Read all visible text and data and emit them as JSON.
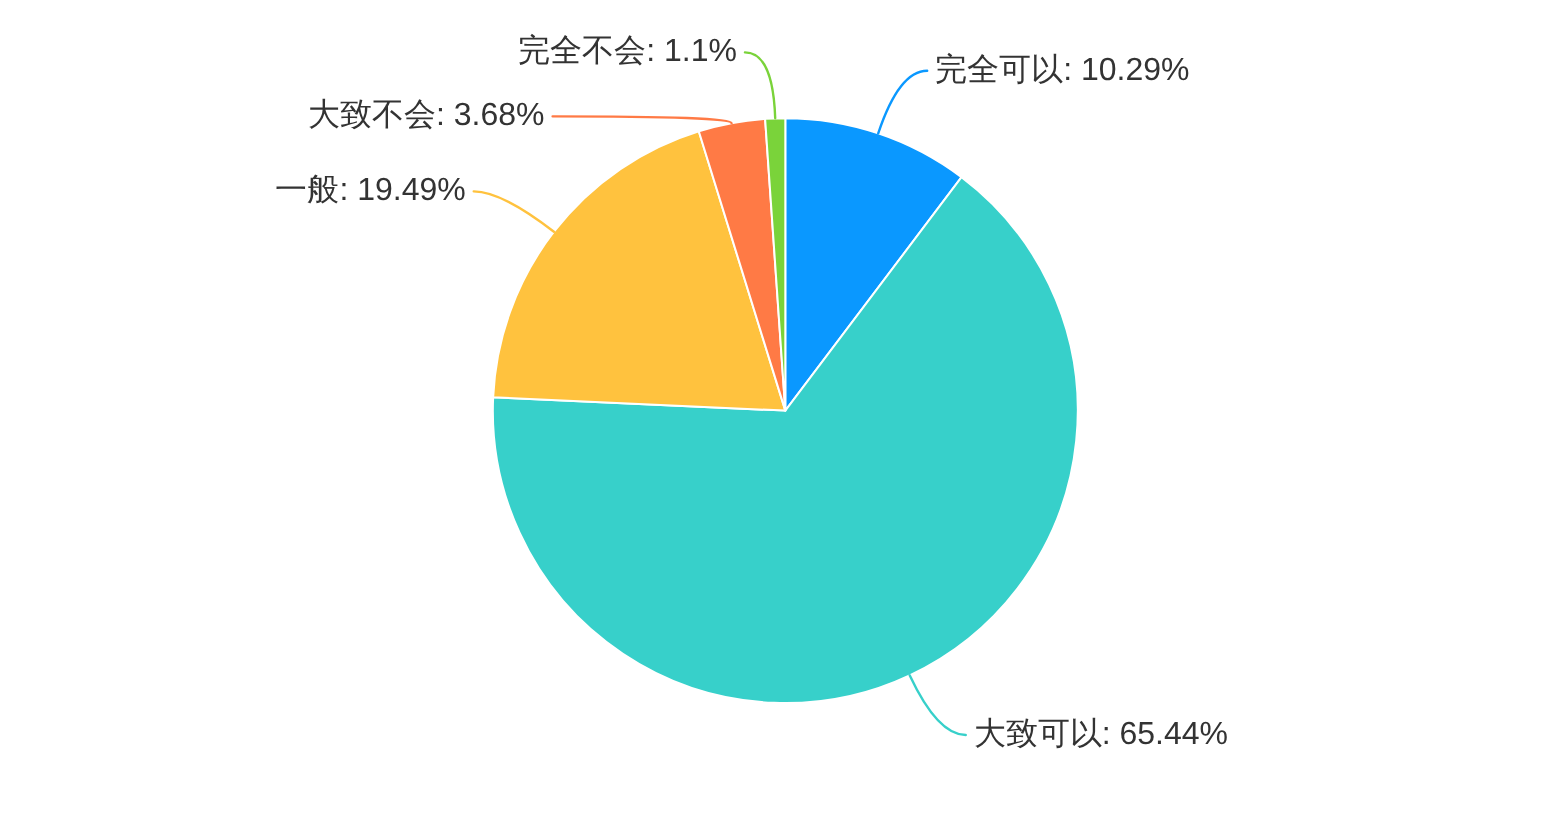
{
  "chart_data": {
    "type": "pie",
    "categories": [
      "完全可以",
      "大致可以",
      "一般",
      "大致不会",
      "完全不会"
    ],
    "values": [
      10.29,
      65.44,
      19.49,
      3.68,
      1.1
    ],
    "colors": [
      "#0a98ff",
      "#37d0ca",
      "#ffc23e",
      "#ff7a45",
      "#7ad33a"
    ],
    "value_labels": [
      "10.29%",
      "65.44%",
      "19.49%",
      "3.68%",
      "1.1%"
    ]
  }
}
